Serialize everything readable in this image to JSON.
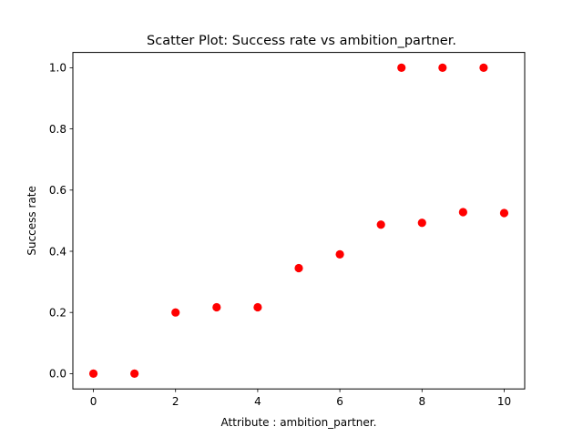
{
  "chart_data": {
    "type": "scatter",
    "title": "Scatter Plot: Success rate vs ambition_partner.",
    "xlabel": "Attribute : ambition_partner.",
    "ylabel": "Success rate",
    "xlim": [
      -0.5,
      10.5
    ],
    "ylim": [
      -0.05,
      1.05
    ],
    "xticks": [
      0,
      2,
      4,
      6,
      8,
      10
    ],
    "yticks": [
      0.0,
      0.2,
      0.4,
      0.6,
      0.8,
      1.0
    ],
    "xtick_labels": [
      "0",
      "2",
      "4",
      "6",
      "8",
      "10"
    ],
    "ytick_labels": [
      "0.0",
      "0.2",
      "0.4",
      "0.6",
      "0.8",
      "1.0"
    ],
    "grid": false,
    "marker_color": "#ff0000",
    "points": [
      {
        "x": 0,
        "y": 0.0
      },
      {
        "x": 1,
        "y": 0.0
      },
      {
        "x": 2,
        "y": 0.2
      },
      {
        "x": 3,
        "y": 0.217
      },
      {
        "x": 4,
        "y": 0.217
      },
      {
        "x": 5,
        "y": 0.345
      },
      {
        "x": 6,
        "y": 0.39
      },
      {
        "x": 7,
        "y": 0.487
      },
      {
        "x": 7.5,
        "y": 1.0
      },
      {
        "x": 8,
        "y": 0.493
      },
      {
        "x": 8.5,
        "y": 1.0
      },
      {
        "x": 9,
        "y": 0.528
      },
      {
        "x": 9.5,
        "y": 1.0
      },
      {
        "x": 10,
        "y": 0.525
      }
    ]
  }
}
